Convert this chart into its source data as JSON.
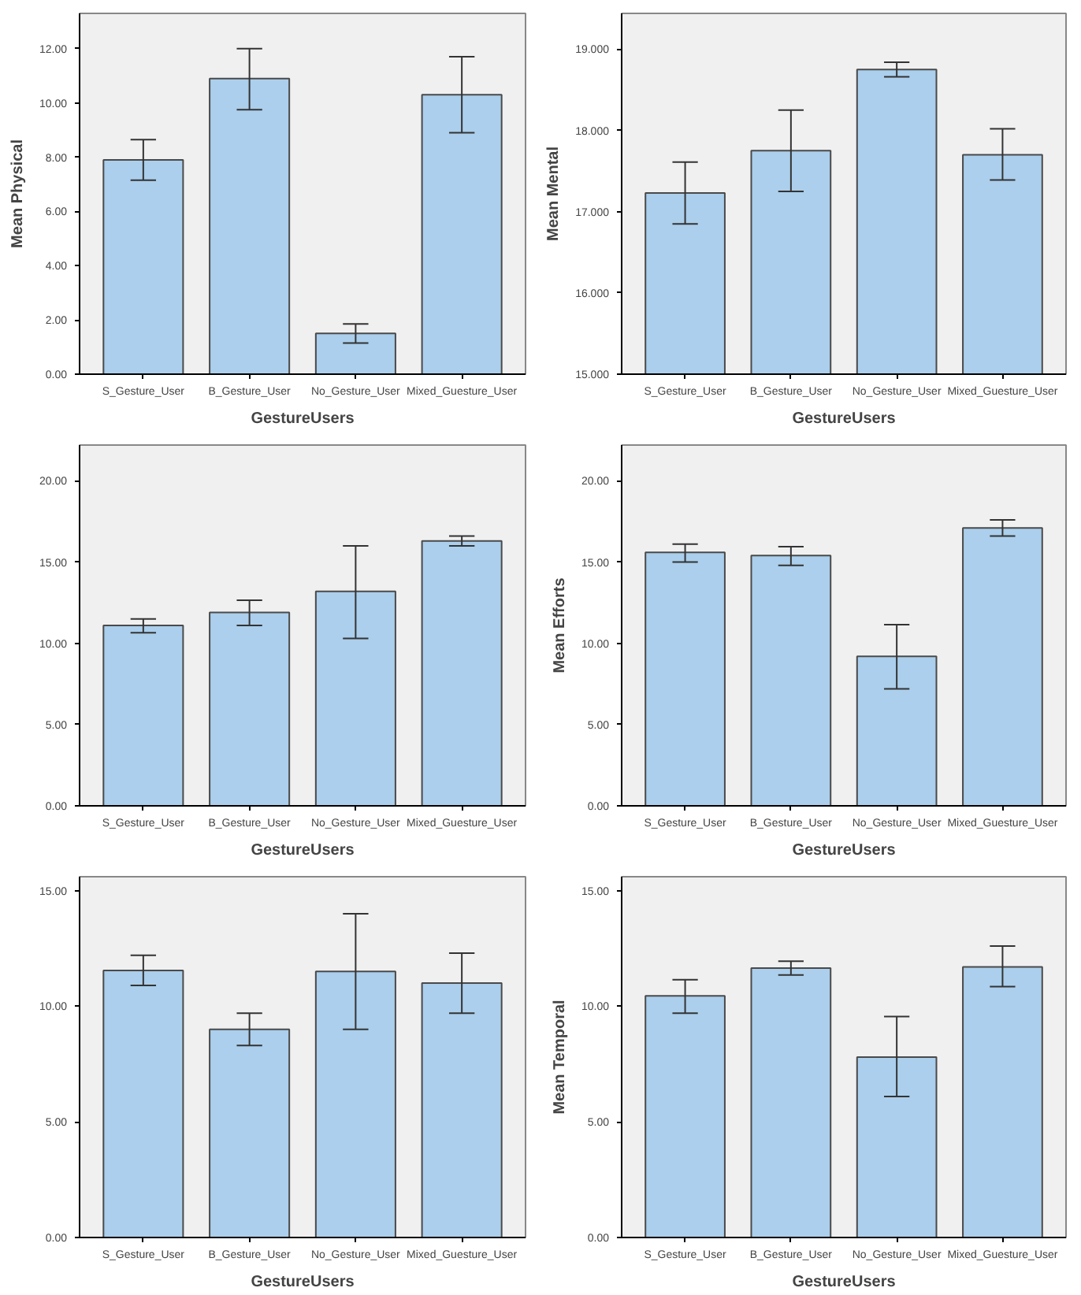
{
  "chart_data": [
    {
      "type": "bar",
      "xlabel": "GestureUsers",
      "ylabel": "Mean Physical",
      "categories": [
        "S_Gesture_User",
        "B_Gesture_User",
        "No_Gesture_User",
        "Mixed_Guesture_User"
      ],
      "values": [
        7.9,
        10.9,
        1.5,
        10.3
      ],
      "errors": [
        [
          7.15,
          8.65
        ],
        [
          9.75,
          12.0
        ],
        [
          1.15,
          1.85
        ],
        [
          8.9,
          11.7
        ]
      ],
      "color": "#abcfec",
      "ylim": [
        0,
        13.3
      ],
      "yticks": [
        {
          "value": 0,
          "label": "0.00"
        },
        {
          "value": 2,
          "label": "2.00"
        },
        {
          "value": 4,
          "label": "4.00"
        },
        {
          "value": 6,
          "label": "6.00"
        },
        {
          "value": 8,
          "label": "8.00"
        },
        {
          "value": 10,
          "label": "10.00"
        },
        {
          "value": 12,
          "label": "12.00"
        }
      ]
    },
    {
      "type": "bar",
      "xlabel": "GestureUsers",
      "ylabel": "Mean Mental",
      "categories": [
        "S_Gesture_User",
        "B_Gesture_User",
        "No_Gesture_User",
        "Mixed_Guesture_User"
      ],
      "values": [
        17.23,
        17.75,
        18.75,
        17.7
      ],
      "errors": [
        [
          16.85,
          17.61
        ],
        [
          17.25,
          18.25
        ],
        [
          18.66,
          18.84
        ],
        [
          17.39,
          18.02
        ]
      ],
      "color": "#abcfec",
      "ylim": [
        15,
        19.44
      ],
      "yticks": [
        {
          "value": 15,
          "label": "15.000"
        },
        {
          "value": 16,
          "label": "16.000"
        },
        {
          "value": 17,
          "label": "17.000"
        },
        {
          "value": 18,
          "label": "18.000"
        },
        {
          "value": 19,
          "label": "19.000"
        }
      ]
    },
    {
      "type": "bar",
      "xlabel": "GestureUsers",
      "categories": [
        "S_Gesture_User",
        "B_Gesture_User",
        "No_Gesture_User",
        "Mixed_Guesture_User"
      ],
      "values": [
        11.1,
        11.9,
        13.2,
        16.3
      ],
      "errors": [
        [
          10.65,
          11.5
        ],
        [
          11.1,
          12.65
        ],
        [
          10.3,
          16.0
        ],
        [
          16.0,
          16.6
        ]
      ],
      "color": "#abcfec",
      "ylim": [
        0,
        22.2
      ],
      "yticks": [
        {
          "value": 0,
          "label": "0.00"
        },
        {
          "value": 5,
          "label": "5.00"
        },
        {
          "value": 10,
          "label": "10.00"
        },
        {
          "value": 15,
          "label": "15.00"
        },
        {
          "value": 20,
          "label": "20.00"
        }
      ]
    },
    {
      "type": "bar",
      "xlabel": "GestureUsers",
      "ylabel": "Mean Efforts",
      "categories": [
        "S_Gesture_User",
        "B_Gesture_User",
        "No_Gesture_User",
        "Mixed_Guesture_User"
      ],
      "values": [
        15.6,
        15.4,
        9.2,
        17.1
      ],
      "errors": [
        [
          15.0,
          16.1
        ],
        [
          14.8,
          15.95
        ],
        [
          7.2,
          11.15
        ],
        [
          16.6,
          17.6
        ]
      ],
      "color": "#abcfec",
      "ylim": [
        0,
        22.2
      ],
      "yticks": [
        {
          "value": 0,
          "label": "0.00"
        },
        {
          "value": 5,
          "label": "5.00"
        },
        {
          "value": 10,
          "label": "10.00"
        },
        {
          "value": 15,
          "label": "15.00"
        },
        {
          "value": 20,
          "label": "20.00"
        }
      ]
    },
    {
      "type": "bar",
      "xlabel": "GestureUsers",
      "categories": [
        "S_Gesture_User",
        "B_Gesture_User",
        "No_Gesture_User",
        "Mixed_Guesture_User"
      ],
      "values": [
        11.55,
        9.0,
        11.5,
        11.0
      ],
      "errors": [
        [
          10.9,
          12.2
        ],
        [
          8.3,
          9.7
        ],
        [
          9.0,
          14.0
        ],
        [
          9.7,
          12.3
        ]
      ],
      "color": "#abcfec",
      "ylim": [
        0,
        15.6
      ],
      "yticks": [
        {
          "value": 0,
          "label": "0.00"
        },
        {
          "value": 5,
          "label": "5.00"
        },
        {
          "value": 10,
          "label": "10.00"
        },
        {
          "value": 15,
          "label": "15.00"
        }
      ]
    },
    {
      "type": "bar",
      "xlabel": "GestureUsers",
      "ylabel": "Mean Temporal",
      "categories": [
        "S_Gesture_User",
        "B_Gesture_User",
        "No_Gesture_User",
        "Mixed_Guesture_User"
      ],
      "values": [
        10.45,
        11.65,
        7.8,
        11.7
      ],
      "errors": [
        [
          9.7,
          11.15
        ],
        [
          11.35,
          11.95
        ],
        [
          6.1,
          9.55
        ],
        [
          10.85,
          12.6
        ]
      ],
      "color": "#abcfec",
      "ylim": [
        0,
        15.6
      ],
      "yticks": [
        {
          "value": 0,
          "label": "0.00"
        },
        {
          "value": 5,
          "label": "5.00"
        },
        {
          "value": 10,
          "label": "10.00"
        },
        {
          "value": 15,
          "label": "15.00"
        }
      ]
    }
  ]
}
